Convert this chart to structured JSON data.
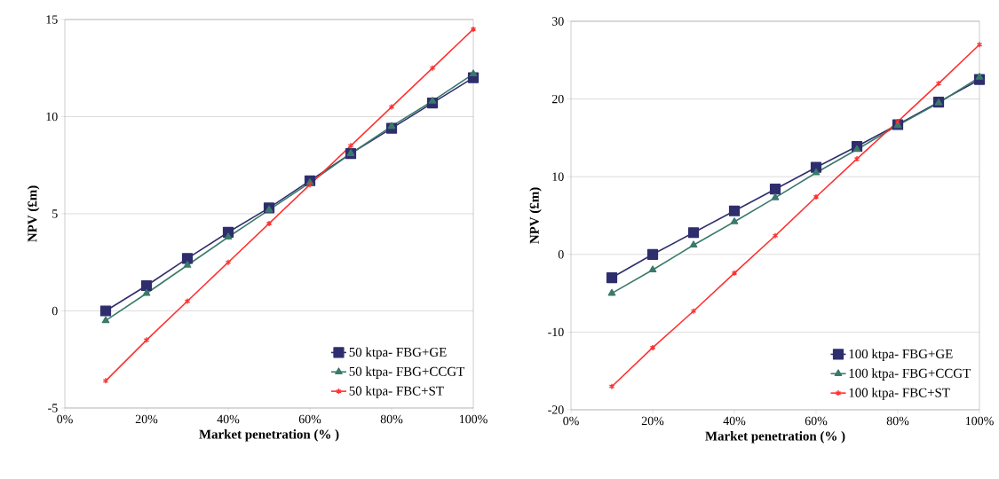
{
  "chart_data": [
    {
      "type": "line",
      "xlabel": "Market penetration (% )",
      "ylabel": "NPV (£m)",
      "x": [
        0.1,
        0.2,
        0.3,
        0.4,
        0.5,
        0.6,
        0.7,
        0.8,
        0.9,
        1.0
      ],
      "xlim": [
        0,
        1
      ],
      "xticks": [
        {
          "value": 0,
          "label": "0%"
        },
        {
          "value": 0.2,
          "label": "20%"
        },
        {
          "value": 0.4,
          "label": "40%"
        },
        {
          "value": 0.6,
          "label": "60%"
        },
        {
          "value": 0.8,
          "label": "80%"
        },
        {
          "value": 1,
          "label": "100%"
        }
      ],
      "ylim": [
        -5,
        15
      ],
      "yticks": [
        -5,
        0,
        5,
        10,
        15
      ],
      "grid": "y",
      "legend": "bottom right",
      "series": [
        {
          "name": "50 ktpa- FBG+GE",
          "color": "#2e2e6e",
          "marker": "square",
          "values": [
            0,
            1.3,
            2.7,
            4.05,
            5.3,
            6.7,
            8.1,
            9.4,
            10.7,
            12.0
          ]
        },
        {
          "name": "50 ktpa- FBG+CCGT",
          "color": "#3a7a6a",
          "marker": "triangle",
          "values": [
            -0.5,
            0.9,
            2.35,
            3.8,
            5.2,
            6.6,
            8.1,
            9.5,
            10.8,
            12.2
          ]
        },
        {
          "name": "50 ktpa- FBC+ST",
          "color": "#ff3030",
          "marker": "cross",
          "values": [
            -3.6,
            -1.5,
            0.5,
            2.5,
            4.5,
            6.5,
            8.5,
            10.5,
            12.5,
            14.5
          ]
        }
      ]
    },
    {
      "type": "line",
      "xlabel": "Market penetration (% )",
      "ylabel": "NPV (£m)",
      "x": [
        0.1,
        0.2,
        0.3,
        0.4,
        0.5,
        0.6,
        0.7,
        0.8,
        0.9,
        1.0
      ],
      "xlim": [
        0,
        1
      ],
      "xticks": [
        {
          "value": 0,
          "label": "0%"
        },
        {
          "value": 0.2,
          "label": "20%"
        },
        {
          "value": 0.4,
          "label": "40%"
        },
        {
          "value": 0.6,
          "label": "60%"
        },
        {
          "value": 0.8,
          "label": "80%"
        },
        {
          "value": 1,
          "label": "100%"
        }
      ],
      "ylim": [
        -20,
        30
      ],
      "yticks": [
        -20,
        -10,
        0,
        10,
        20,
        30
      ],
      "grid": "y",
      "legend": "bottom right",
      "series": [
        {
          "name": "100 ktpa- FBG+GE",
          "color": "#2e2e6e",
          "marker": "square",
          "values": [
            -3,
            0,
            2.8,
            5.6,
            8.4,
            11.2,
            13.9,
            16.7,
            19.6,
            22.5
          ]
        },
        {
          "name": "100 ktpa- FBG+CCGT",
          "color": "#3a7a6a",
          "marker": "triangle",
          "values": [
            -5,
            -2,
            1.2,
            4.2,
            7.3,
            10.5,
            13.5,
            16.6,
            19.5,
            22.8
          ]
        },
        {
          "name": "100 ktpa- FBC+ST",
          "color": "#ff3030",
          "marker": "cross",
          "values": [
            -17,
            -12,
            -7.3,
            -2.4,
            2.4,
            7.4,
            12.3,
            17.1,
            22,
            27
          ]
        }
      ]
    }
  ]
}
